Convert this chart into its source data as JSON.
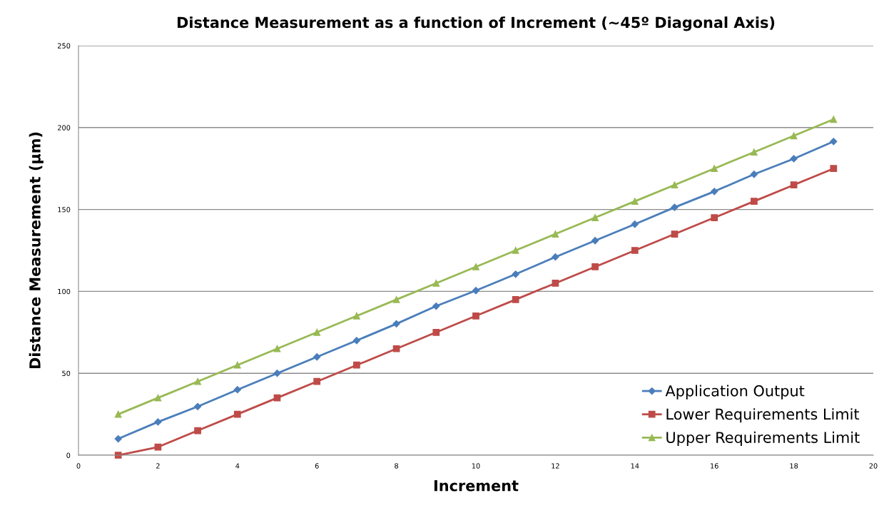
{
  "chart_data": {
    "type": "line",
    "title": "Distance Measurement as a function of Increment (~45º Diagonal Axis)",
    "xlabel": "Increment",
    "ylabel": "Distance Measurement (µm)",
    "x": [
      1,
      2,
      3,
      4,
      5,
      6,
      7,
      8,
      9,
      10,
      11,
      12,
      13,
      14,
      15,
      16,
      17,
      18,
      19
    ],
    "series": [
      {
        "name": "Application Output",
        "color": "#4a7ebb",
        "marker": "diamond",
        "values": [
          10,
          20.3,
          29.7,
          40,
          50,
          60,
          70,
          80.2,
          91,
          100.5,
          110.5,
          121,
          131,
          141,
          151.3,
          161,
          171.5,
          181,
          191.5
        ]
      },
      {
        "name": "Lower Requirements Limit",
        "color": "#be4b48",
        "marker": "square",
        "values": [
          0,
          5,
          15,
          25,
          35,
          45,
          55,
          65,
          75,
          85,
          95,
          105,
          115,
          125,
          135,
          145,
          155,
          165,
          175
        ]
      },
      {
        "name": "Upper Requirements Limit",
        "color": "#98b954",
        "marker": "triangle",
        "values": [
          25,
          35,
          45,
          55,
          65,
          75,
          85,
          95,
          105,
          115,
          125,
          135,
          145,
          155,
          165,
          175,
          185,
          195,
          205
        ]
      }
    ],
    "xlim": [
      0,
      20
    ],
    "xticks": [
      0,
      2,
      4,
      6,
      8,
      10,
      12,
      14,
      16,
      18,
      20
    ],
    "ylim": [
      0,
      250
    ],
    "yticks": [
      0,
      50,
      100,
      150,
      200,
      250
    ],
    "grid": "y",
    "legend": "bottom right",
    "line_style": "solid"
  }
}
